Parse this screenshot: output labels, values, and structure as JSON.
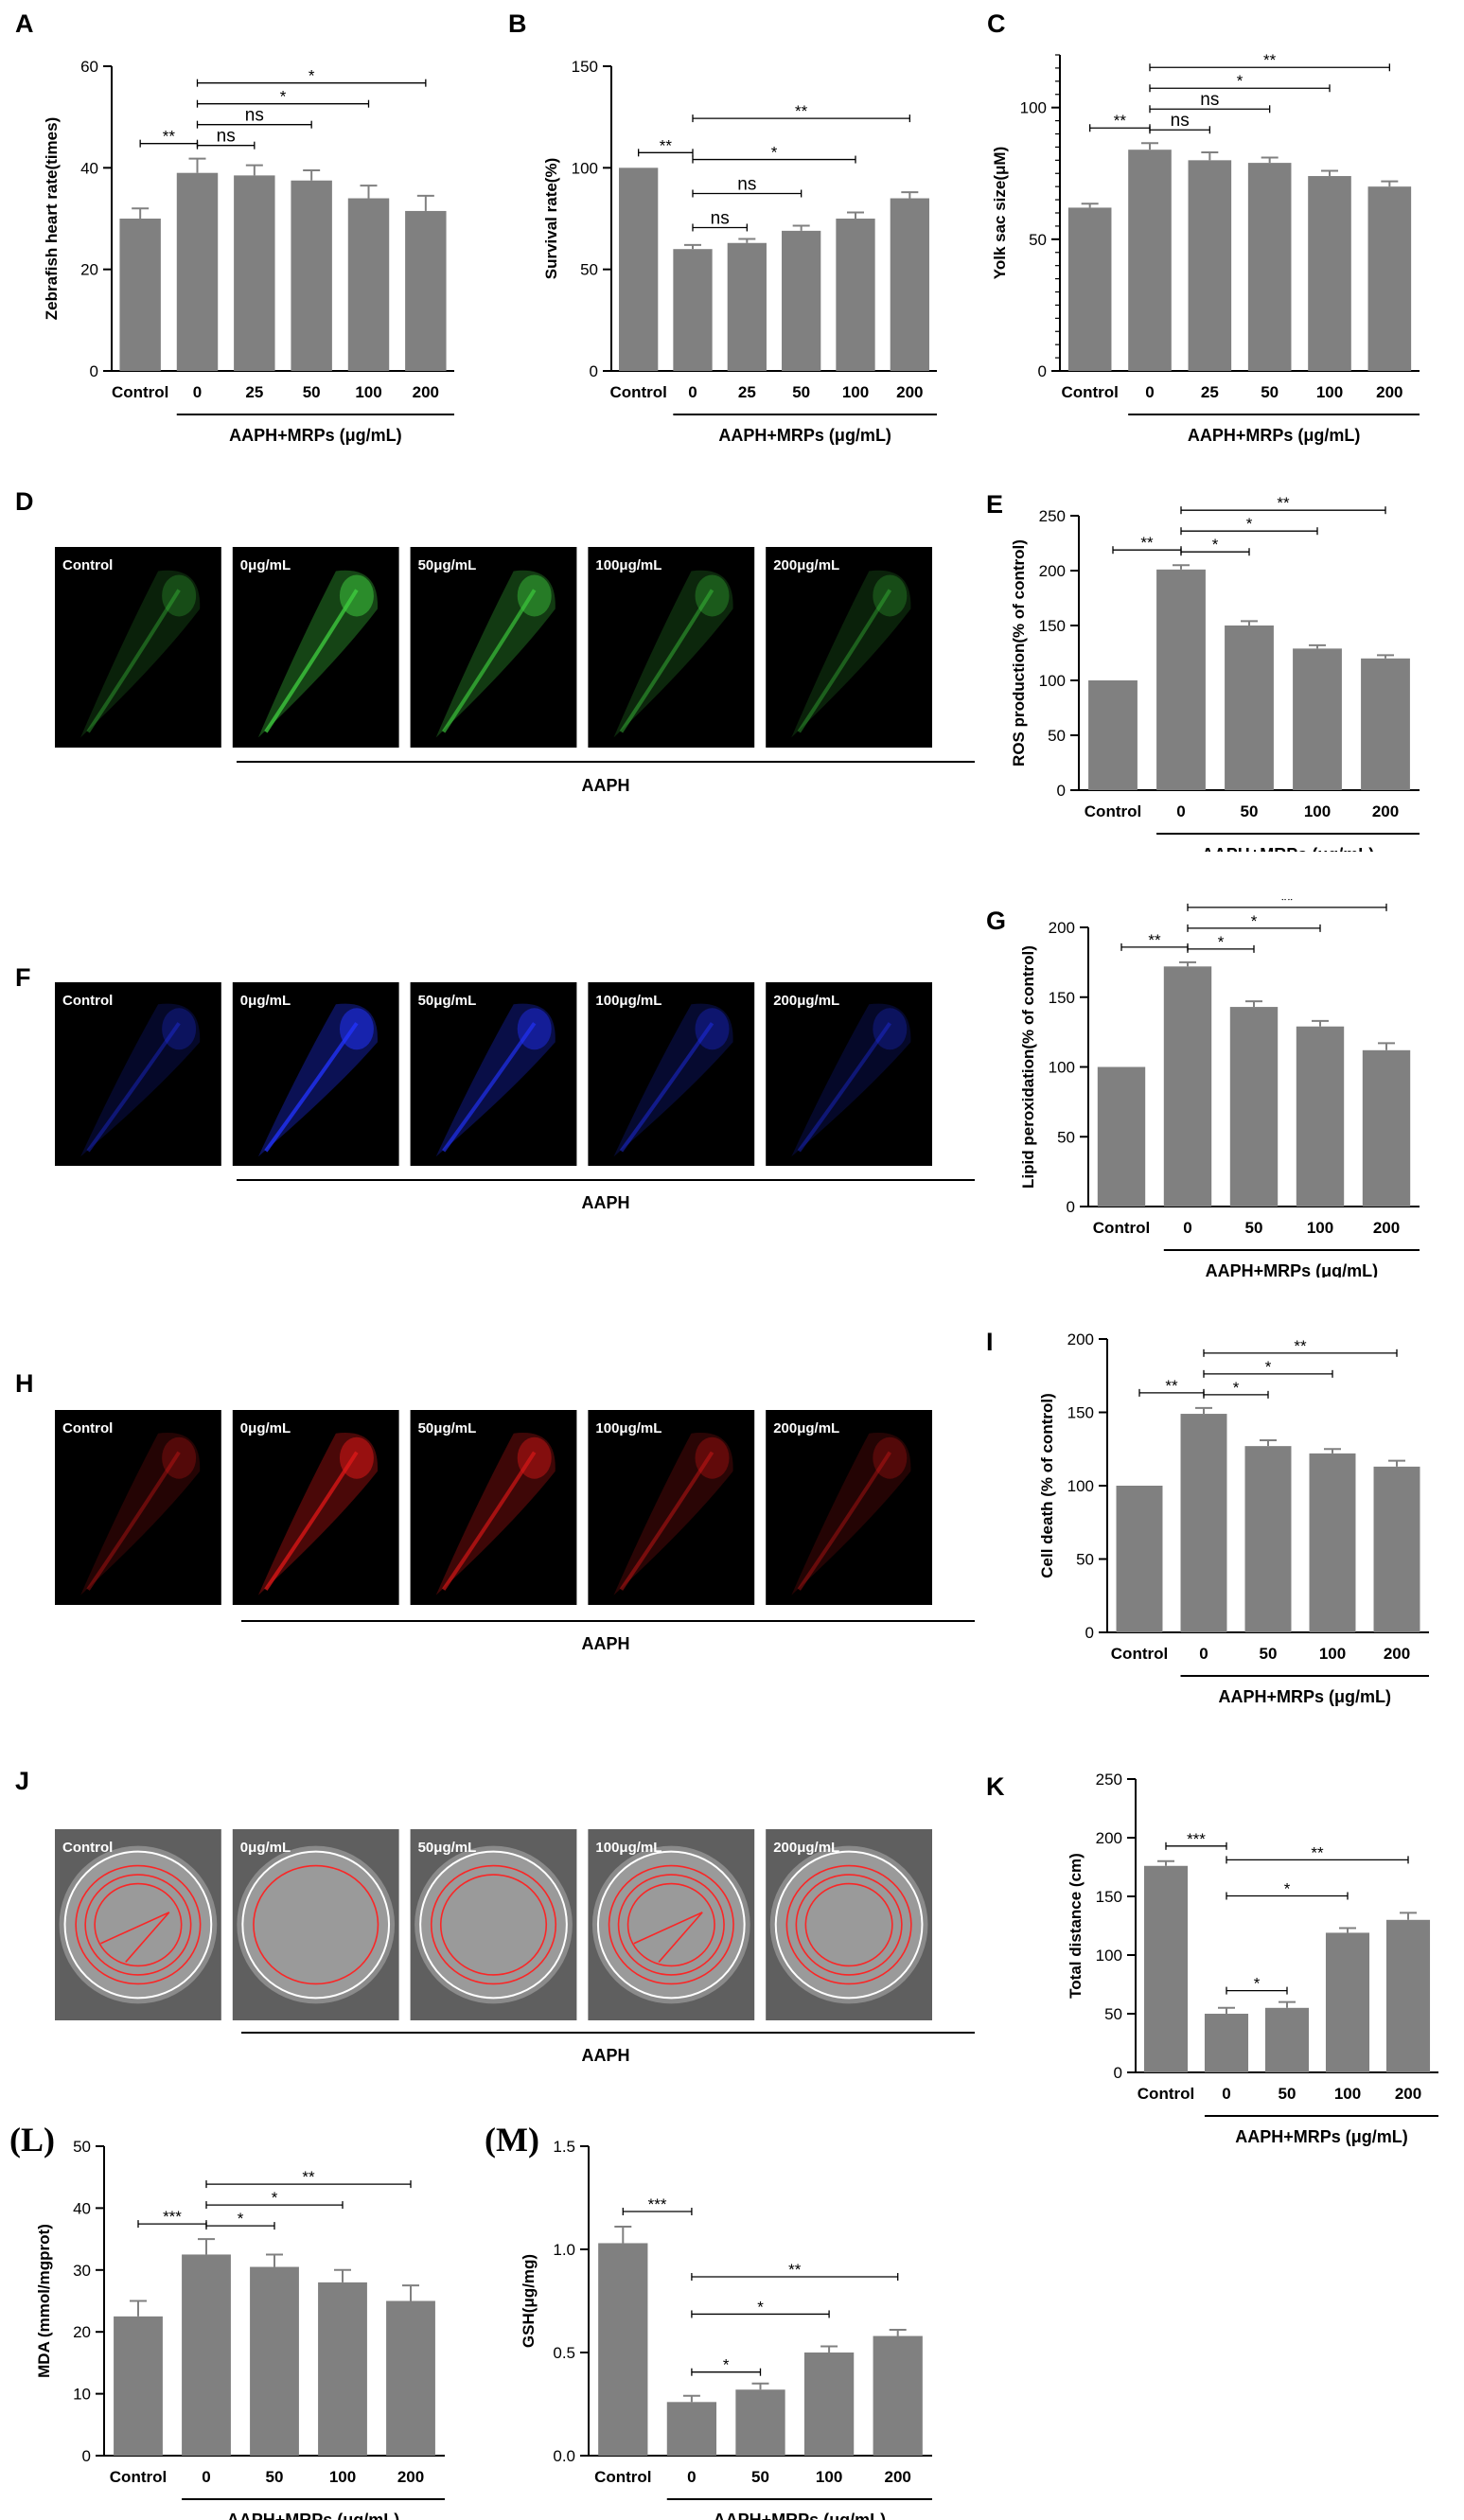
{
  "colors": {
    "bar": "#808080",
    "axis": "#000000",
    "photo_bg": "#000000",
    "track_bg": "#5f5f5f",
    "green": "#3fcf3f",
    "blue": "#2233ff",
    "red": "#e01818",
    "track": "#ff2020"
  },
  "photo_panels": [
    {
      "letter": "D",
      "color": "green",
      "labels": [
        "Control",
        "0μg/mL",
        "50μg/mL",
        "100μg/mL",
        "200μg/mL"
      ],
      "group_label": "AAPH"
    },
    {
      "letter": "F",
      "color": "blue",
      "labels": [
        "Control",
        "0μg/mL",
        "50μg/mL",
        "100μg/mL",
        "200μg/mL"
      ],
      "group_label": "AAPH"
    },
    {
      "letter": "H",
      "color": "red",
      "labels": [
        "Control",
        "0μg/mL",
        "50μg/mL",
        "100μg/mL",
        "200μg/mL"
      ],
      "group_label": "AAPH"
    },
    {
      "letter": "J",
      "color": "track",
      "labels": [
        "Control",
        "0μg/mL",
        "50μg/mL",
        "100μg/mL",
        "200μg/mL"
      ],
      "group_label": "AAPH"
    }
  ],
  "chart_data": [
    {
      "letter": "A",
      "serif": false,
      "type": "bar",
      "categories": [
        "Control",
        "0",
        "25",
        "50",
        "100",
        "200"
      ],
      "values": [
        30,
        39,
        38.5,
        37.5,
        34,
        31.5
      ],
      "errors": [
        2,
        2.8,
        2,
        2,
        2.5,
        3
      ],
      "ylabel": "Zebrafish heart rate(times)",
      "xgroup_label": "AAPH+MRPs (μg/mL)",
      "ylim": [
        0,
        60
      ],
      "yticks": [
        0,
        20,
        40,
        60
      ],
      "minor": 0,
      "sig": [
        {
          "from": 0,
          "to": 1,
          "label": "**"
        },
        {
          "from": 1,
          "to": 2,
          "label": "ns"
        },
        {
          "from": 1,
          "to": 3,
          "label": "ns"
        },
        {
          "from": 1,
          "to": 4,
          "label": "*"
        },
        {
          "from": 1,
          "to": 5,
          "label": "*"
        }
      ]
    },
    {
      "letter": "B",
      "serif": false,
      "type": "bar",
      "categories": [
        "Control",
        "0",
        "25",
        "50",
        "100",
        "200"
      ],
      "values": [
        100,
        60,
        63,
        69,
        75,
        85
      ],
      "errors": [
        0,
        2,
        2,
        2.5,
        3,
        3
      ],
      "ylabel": "Survival rate(%)",
      "xgroup_label": "AAPH+MRPs (μg/mL)",
      "ylim": [
        0,
        150
      ],
      "yticks": [
        0,
        50,
        100,
        150
      ],
      "minor": 0,
      "sig": [
        {
          "from": 0,
          "to": 1,
          "label": "**"
        },
        {
          "from": 1,
          "to": 2,
          "label": "ns"
        },
        {
          "from": 1,
          "to": 3,
          "label": "ns"
        },
        {
          "from": 1,
          "to": 4,
          "label": "*"
        },
        {
          "from": 1,
          "to": 5,
          "label": "**"
        }
      ]
    },
    {
      "letter": "C",
      "serif": false,
      "type": "bar",
      "categories": [
        "Control",
        "0",
        "25",
        "50",
        "100",
        "200"
      ],
      "values": [
        62,
        84,
        80,
        79,
        74,
        70
      ],
      "errors": [
        1.5,
        2.5,
        3,
        2,
        2,
        2
      ],
      "ylabel": "Yolk sac size(μM)",
      "xgroup_label": "AAPH+MRPs (μg/mL)",
      "ylim": [
        0,
        120
      ],
      "yticks": [
        0,
        50,
        100
      ],
      "minor": 5,
      "sig": [
        {
          "from": 0,
          "to": 1,
          "label": "**"
        },
        {
          "from": 1,
          "to": 2,
          "label": "ns"
        },
        {
          "from": 1,
          "to": 3,
          "label": "ns"
        },
        {
          "from": 1,
          "to": 4,
          "label": "*"
        },
        {
          "from": 1,
          "to": 5,
          "label": "**"
        }
      ]
    },
    {
      "letter": "E",
      "serif": false,
      "type": "bar",
      "categories": [
        "Control",
        "0",
        "50",
        "100",
        "200"
      ],
      "values": [
        100,
        201,
        150,
        129,
        120
      ],
      "errors": [
        0,
        4,
        4,
        3,
        3
      ],
      "ylabel": "ROS production(% of control)",
      "xgroup_label": "AAPH+MRPs (μg/mL)",
      "ylim": [
        0,
        250
      ],
      "yticks": [
        0,
        50,
        100,
        150,
        200,
        250
      ],
      "minor": 0,
      "sig": [
        {
          "from": 0,
          "to": 1,
          "label": "**"
        },
        {
          "from": 1,
          "to": 2,
          "label": "*"
        },
        {
          "from": 1,
          "to": 3,
          "label": "*"
        },
        {
          "from": 1,
          "to": 4,
          "label": "**"
        }
      ]
    },
    {
      "letter": "G",
      "serif": false,
      "type": "bar",
      "categories": [
        "Control",
        "0",
        "50",
        "100",
        "200"
      ],
      "values": [
        100,
        172,
        143,
        129,
        112
      ],
      "errors": [
        0,
        3,
        4,
        4,
        5
      ],
      "ylabel": "Lipid peroxidation(% of control)",
      "xgroup_label": "AAPH+MRPs (μg/mL)",
      "ylim": [
        0,
        200
      ],
      "yticks": [
        0,
        50,
        100,
        150,
        200
      ],
      "minor": 0,
      "sig": [
        {
          "from": 0,
          "to": 1,
          "label": "**"
        },
        {
          "from": 1,
          "to": 2,
          "label": "*"
        },
        {
          "from": 1,
          "to": 3,
          "label": "*"
        },
        {
          "from": 1,
          "to": 4,
          "label": "**"
        }
      ]
    },
    {
      "letter": "I",
      "serif": false,
      "type": "bar",
      "categories": [
        "Control",
        "0",
        "50",
        "100",
        "200"
      ],
      "values": [
        100,
        149,
        127,
        122,
        113
      ],
      "errors": [
        0,
        4,
        4,
        3,
        4
      ],
      "ylabel": "Cell death (% of control)",
      "xgroup_label": "AAPH+MRPs (μg/mL)",
      "ylim": [
        0,
        200
      ],
      "yticks": [
        0,
        50,
        100,
        150,
        200
      ],
      "minor": 0,
      "sig": [
        {
          "from": 0,
          "to": 1,
          "label": "**"
        },
        {
          "from": 1,
          "to": 2,
          "label": "*"
        },
        {
          "from": 1,
          "to": 3,
          "label": "*"
        },
        {
          "from": 1,
          "to": 4,
          "label": "**"
        }
      ]
    },
    {
      "letter": "K",
      "serif": false,
      "type": "bar",
      "categories": [
        "Control",
        "0",
        "50",
        "100",
        "200"
      ],
      "values": [
        176,
        50,
        55,
        119,
        130
      ],
      "errors": [
        4,
        5,
        5,
        4,
        6
      ],
      "ylabel": "Total distance (cm)",
      "xgroup_label": "AAPH+MRPs (μg/mL)",
      "ylim": [
        0,
        250
      ],
      "yticks": [
        0,
        50,
        100,
        150,
        200,
        250
      ],
      "minor": 0,
      "sig": [
        {
          "from": 0,
          "to": 1,
          "label": "***"
        },
        {
          "from": 1,
          "to": 2,
          "label": "*"
        },
        {
          "from": 1,
          "to": 3,
          "label": "*"
        },
        {
          "from": 1,
          "to": 4,
          "label": "**"
        }
      ]
    },
    {
      "letter": "(L)",
      "serif": true,
      "type": "bar",
      "categories": [
        "Control",
        "0",
        "50",
        "100",
        "200"
      ],
      "values": [
        22.5,
        32.5,
        30.5,
        28,
        25
      ],
      "errors": [
        2.5,
        2.5,
        2,
        2,
        2.5
      ],
      "ylabel": "MDA (mmol/mgprot)",
      "xgroup_label": "AAPH+MRPs (μg/mL)",
      "ylim": [
        0,
        50
      ],
      "yticks": [
        0,
        10,
        20,
        30,
        40,
        50
      ],
      "minor": 0,
      "sig": [
        {
          "from": 0,
          "to": 1,
          "label": "***"
        },
        {
          "from": 1,
          "to": 2,
          "label": "*"
        },
        {
          "from": 1,
          "to": 3,
          "label": "*"
        },
        {
          "from": 1,
          "to": 4,
          "label": "**"
        }
      ]
    },
    {
      "letter": "(M)",
      "serif": true,
      "type": "bar",
      "categories": [
        "Control",
        "0",
        "50",
        "100",
        "200"
      ],
      "values": [
        1.03,
        0.26,
        0.32,
        0.5,
        0.58
      ],
      "errors": [
        0.08,
        0.03,
        0.03,
        0.03,
        0.03
      ],
      "ylabel": "GSH(μg/mg)",
      "xgroup_label": "AAPH+MRPs (μg/mL)",
      "ylim": [
        0,
        1.5
      ],
      "yticks": [
        0.0,
        0.5,
        1.0,
        1.5
      ],
      "tick_decimals": 1,
      "minor": 0,
      "sig": [
        {
          "from": 0,
          "to": 1,
          "label": "***"
        },
        {
          "from": 1,
          "to": 2,
          "label": "*"
        },
        {
          "from": 1,
          "to": 3,
          "label": "*"
        },
        {
          "from": 1,
          "to": 4,
          "label": "**"
        }
      ]
    }
  ]
}
